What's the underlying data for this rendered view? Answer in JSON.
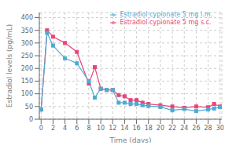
{
  "chart_data": {
    "type": "line",
    "x": [
      0,
      1,
      2,
      4,
      6,
      8,
      9,
      10,
      11,
      12,
      13,
      14,
      15,
      16,
      17,
      18,
      20,
      22,
      24,
      26,
      28,
      29,
      30
    ],
    "series": [
      {
        "name": "Estradiol cypionate 5 mg s.c.",
        "color": "#e8457a",
        "values": [
          38,
          350,
          325,
          300,
          265,
          140,
          205,
          120,
          115,
          115,
          95,
          90,
          75,
          75,
          65,
          60,
          55,
          50,
          45,
          50,
          47,
          60,
          50
        ]
      },
      {
        "name": "Estradiol cypionate 5 mg i.m.",
        "color": "#4dacd4",
        "values": [
          38,
          340,
          290,
          240,
          220,
          150,
          85,
          120,
          115,
          115,
          65,
          65,
          60,
          60,
          55,
          52,
          48,
          35,
          40,
          32,
          38,
          42,
          47
        ]
      }
    ],
    "xlabel": "Time (days)",
    "ylabel": "Estradiol levels (pg/mL)",
    "xlim": [
      -0.3,
      30.3
    ],
    "ylim": [
      0,
      420
    ],
    "xticks": [
      0,
      2,
      4,
      6,
      8,
      10,
      12,
      14,
      16,
      18,
      20,
      22,
      24,
      26,
      28,
      30
    ],
    "yticks": [
      0,
      50,
      100,
      150,
      200,
      250,
      300,
      350,
      400
    ],
    "grid": true,
    "legend": "upper right",
    "marker": "square"
  }
}
